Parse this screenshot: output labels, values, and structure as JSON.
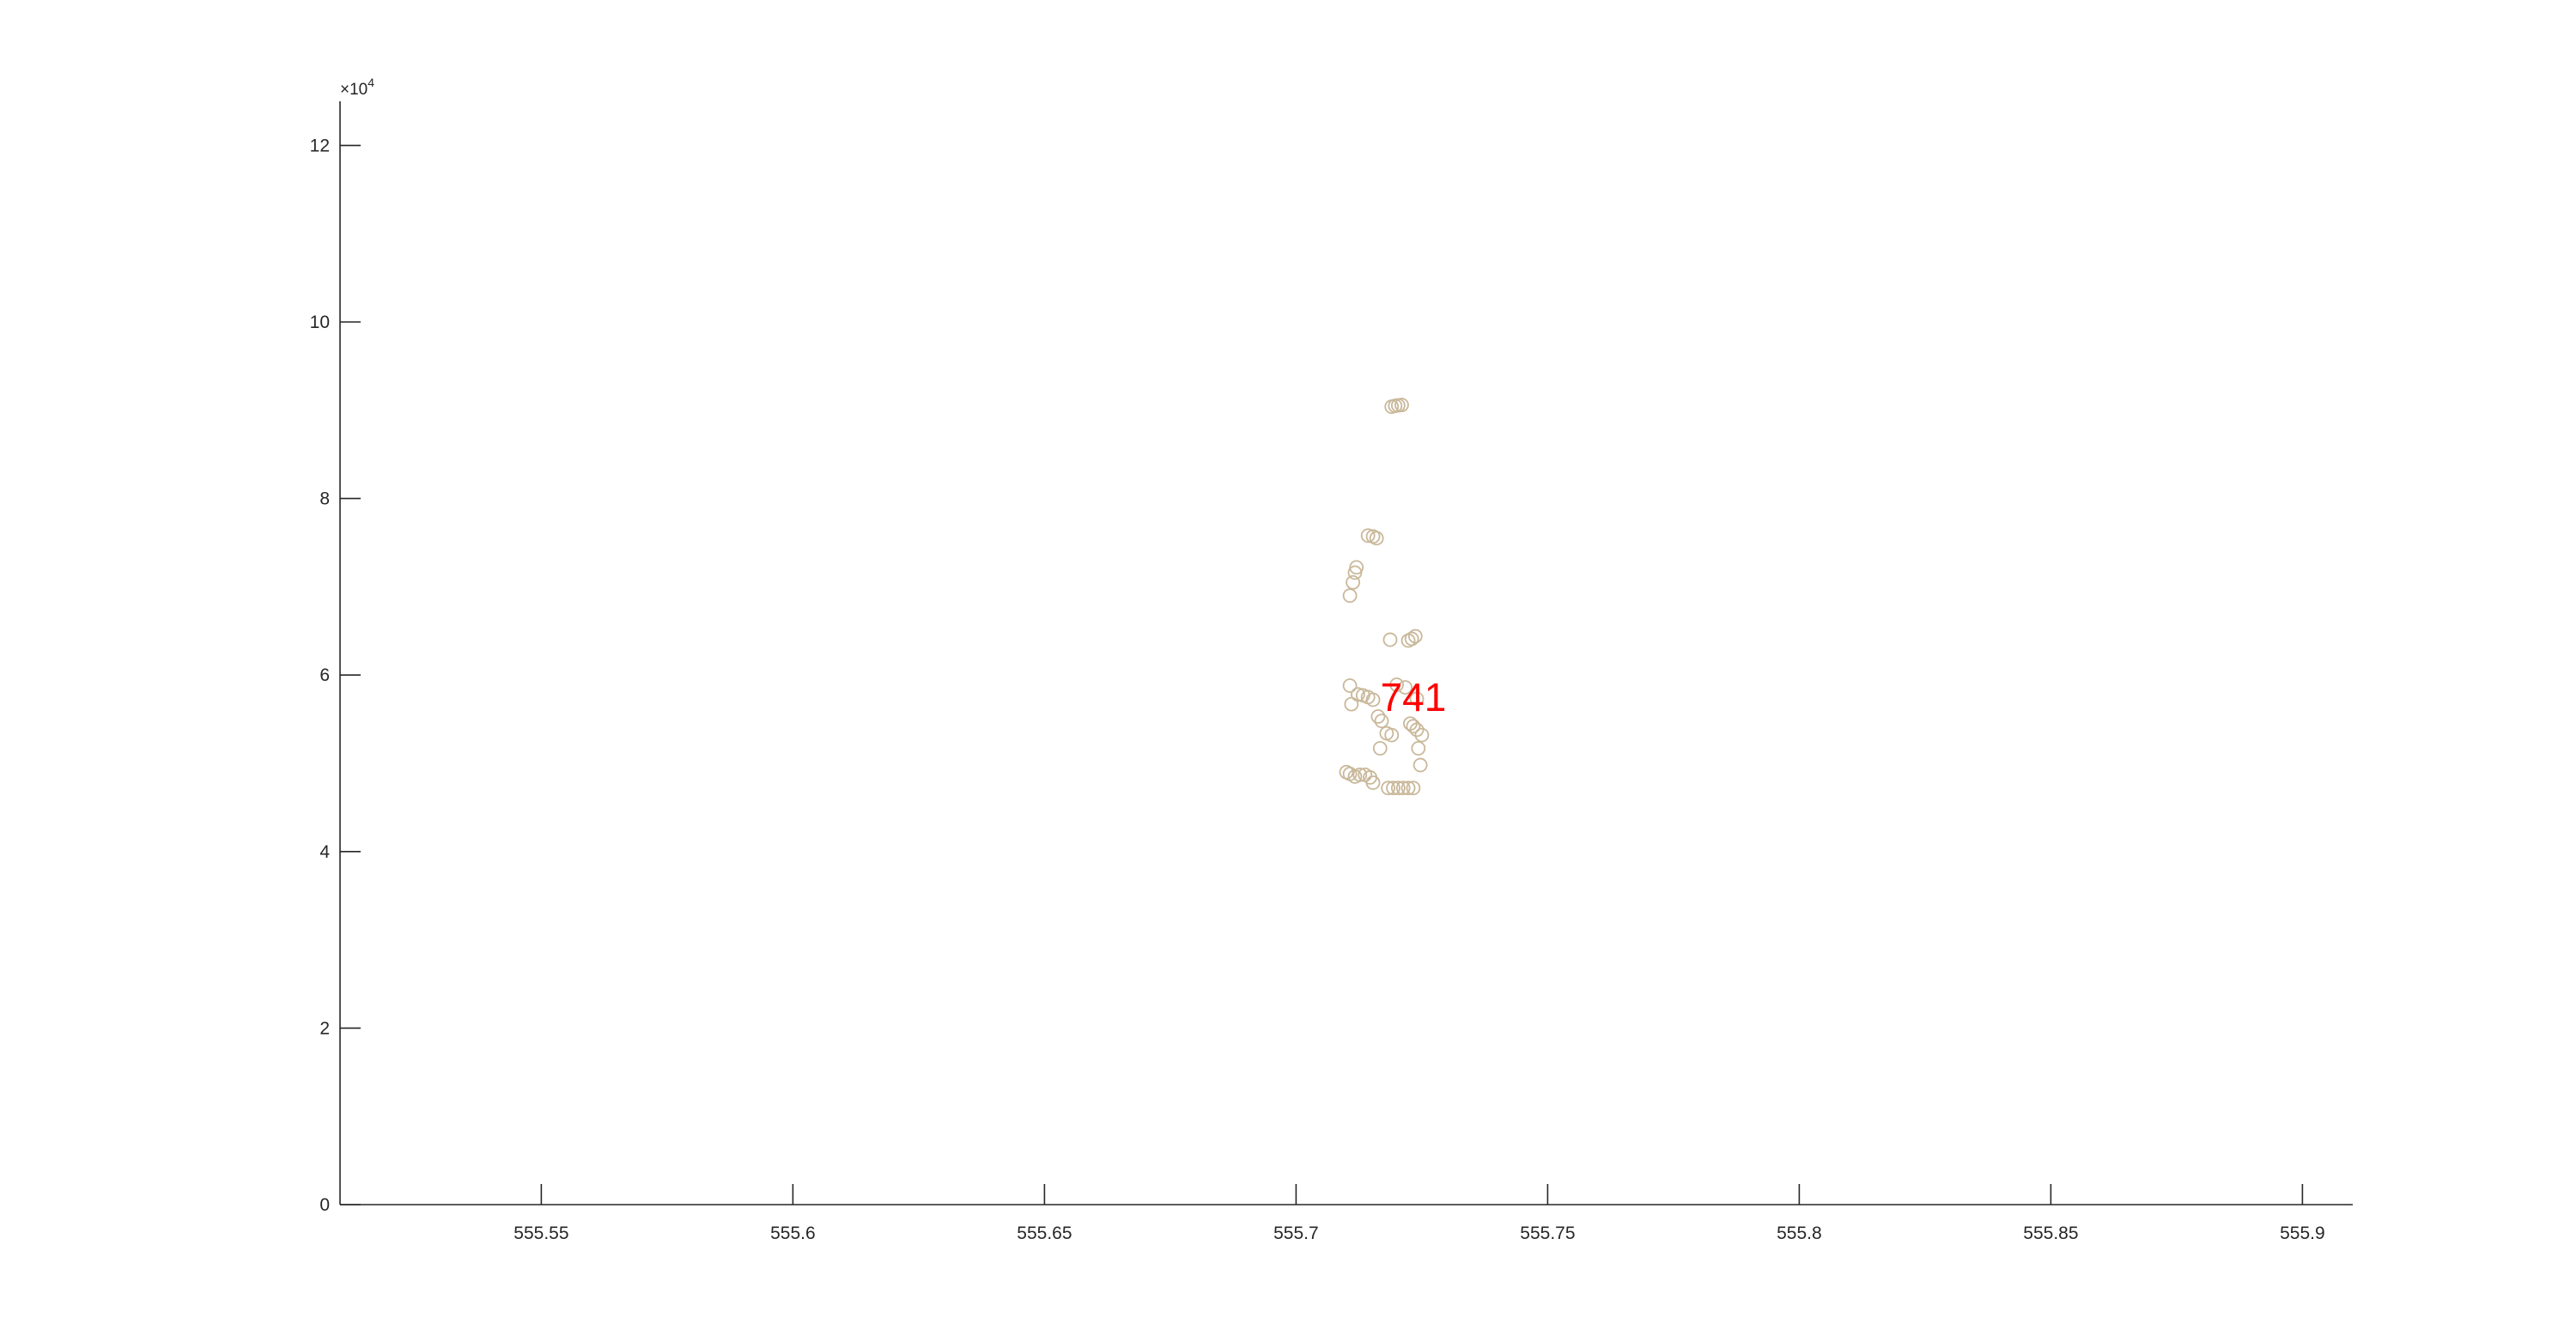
{
  "chart_data": {
    "type": "scatter",
    "title": "",
    "xlabel": "",
    "ylabel": "",
    "xlim": [
      555.51,
      555.91
    ],
    "ylim": [
      0,
      125000
    ],
    "x_ticks": [
      555.55,
      555.6,
      555.65,
      555.7,
      555.75,
      555.8,
      555.85,
      555.9
    ],
    "x_tick_labels": [
      "555.55",
      "555.6",
      "555.65",
      "555.7",
      "555.75",
      "555.8",
      "555.85",
      "555.9"
    ],
    "y_ticks": [
      0,
      20000,
      40000,
      60000,
      80000,
      100000,
      120000
    ],
    "y_tick_labels": [
      "0",
      "2",
      "4",
      "6",
      "8",
      "10",
      "12"
    ],
    "y_exponent": {
      "base": "×10",
      "power": "4"
    },
    "grid": false,
    "marker_color": "#c9b89a",
    "annotation": {
      "text": "741",
      "x": 555.7233,
      "y": 57500,
      "color": "#ff0000"
    },
    "series": [
      {
        "marker": "circle",
        "points": [
          [
            555.719,
            90400
          ],
          [
            555.7197,
            90500
          ],
          [
            555.7203,
            90550
          ],
          [
            555.721,
            90600
          ],
          [
            555.7143,
            75800
          ],
          [
            555.7153,
            75700
          ],
          [
            555.716,
            75500
          ],
          [
            555.712,
            72200
          ],
          [
            555.7117,
            71600
          ],
          [
            555.7113,
            70500
          ],
          [
            555.7107,
            69000
          ],
          [
            555.7187,
            64000
          ],
          [
            555.7223,
            63900
          ],
          [
            555.723,
            64100
          ],
          [
            555.7237,
            64400
          ],
          [
            555.7107,
            58800
          ],
          [
            555.7123,
            57800
          ],
          [
            555.7133,
            57700
          ],
          [
            555.7143,
            57500
          ],
          [
            555.7153,
            57200
          ],
          [
            555.711,
            56700
          ],
          [
            555.72,
            58900
          ],
          [
            555.7217,
            58600
          ],
          [
            555.724,
            57300
          ],
          [
            555.7163,
            55300
          ],
          [
            555.717,
            54800
          ],
          [
            555.7227,
            54500
          ],
          [
            555.7233,
            54200
          ],
          [
            555.724,
            53800
          ],
          [
            555.725,
            53200
          ],
          [
            555.718,
            53400
          ],
          [
            555.719,
            53200
          ],
          [
            555.7167,
            51700
          ],
          [
            555.7243,
            51700
          ],
          [
            555.7247,
            49800
          ],
          [
            555.71,
            49000
          ],
          [
            555.7107,
            48800
          ],
          [
            555.7117,
            48500
          ],
          [
            555.7127,
            48700
          ],
          [
            555.7137,
            48700
          ],
          [
            555.7147,
            48400
          ],
          [
            555.7153,
            47800
          ],
          [
            555.7183,
            47200
          ],
          [
            555.7193,
            47200
          ],
          [
            555.7203,
            47200
          ],
          [
            555.7213,
            47200
          ],
          [
            555.7223,
            47200
          ],
          [
            555.7233,
            47200
          ]
        ]
      }
    ]
  }
}
